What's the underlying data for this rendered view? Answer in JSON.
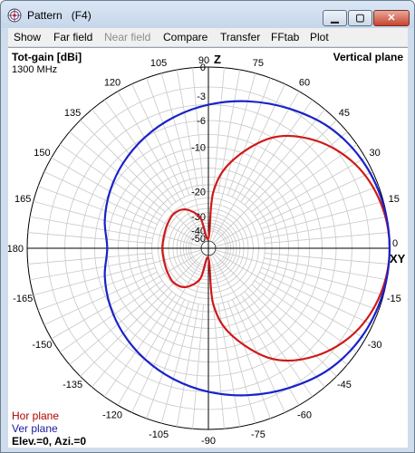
{
  "window": {
    "title": "Pattern   (F4)",
    "controls": {
      "minimize": "▁",
      "maximize": "▢",
      "close": "✕"
    }
  },
  "menu": [
    "Show",
    "Far field",
    "Near field",
    "Compare",
    "Transfer",
    "FFtab",
    "Plot"
  ],
  "menu_disabled": [
    false,
    false,
    true,
    false,
    false,
    false,
    false
  ],
  "plot": {
    "quantity": "Tot-gain [dBi]",
    "frequency": "1300 MHz",
    "plane_label": "Vertical plane",
    "z_label": "Z",
    "xy_label": "XY",
    "legend": {
      "hor": "Hor plane",
      "ver": "Ver plane"
    },
    "status": "Elev.=0, Azi.=0",
    "colors": {
      "hor": "#d01818",
      "ver": "#1a22c8",
      "grid": "#c8c8c8",
      "axis": "#000000",
      "legend_hor": "#b00000",
      "legend_ver": "#1a1aa0"
    }
  },
  "chart_data": {
    "type": "polar",
    "radial_unit": "dBi",
    "radial_ticks": [
      0,
      -3,
      -6,
      -10,
      -20,
      -30,
      -40,
      -50
    ],
    "angle_ticks": [
      90,
      75,
      60,
      45,
      30,
      15,
      0,
      -15,
      -30,
      -45,
      -60,
      -75,
      -90,
      -105,
      -120,
      -135,
      -150,
      -165,
      180,
      165,
      150,
      135,
      120,
      105
    ],
    "grid": true,
    "series": [
      {
        "name": "Hor plane",
        "angles": [
          0,
          15,
          30,
          45,
          60,
          75,
          85,
          90,
          105,
          120,
          135,
          150,
          165,
          180,
          -165,
          -150,
          -135,
          -120,
          -105,
          -90,
          -85,
          -75,
          -60,
          -45,
          -30,
          -15
        ],
        "values": [
          0,
          -0.3,
          -1.2,
          -3,
          -6,
          -12,
          -20,
          -50,
          -30,
          -24,
          -22.5,
          -23,
          -23.5,
          -23.5,
          -23.5,
          -23,
          -22.5,
          -24,
          -30,
          -50,
          -20,
          -12,
          -6,
          -3,
          -1.2,
          -0.3
        ]
      },
      {
        "name": "Ver plane",
        "angles": [
          0,
          15,
          30,
          45,
          60,
          75,
          90,
          105,
          120,
          135,
          150,
          165,
          180,
          -165,
          -150,
          -135,
          -120,
          -105,
          -90,
          -75,
          -60,
          -45,
          -30,
          -15
        ],
        "values": [
          0,
          -0.1,
          -0.4,
          -1,
          -2,
          -3,
          -4,
          -5,
          -6,
          -7,
          -8,
          -9,
          -10,
          -9,
          -8,
          -7,
          -6,
          -5,
          -4,
          -3,
          -2,
          -1,
          -0.4,
          -0.1
        ]
      }
    ]
  }
}
